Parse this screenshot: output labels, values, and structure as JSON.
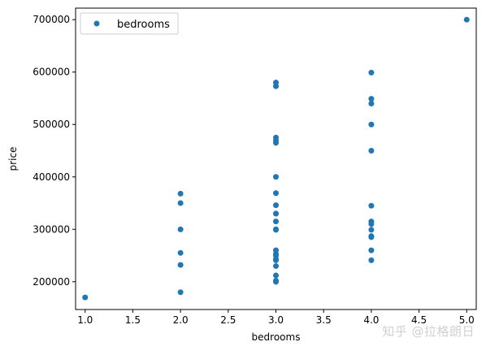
{
  "chart_data": {
    "type": "scatter",
    "xlabel": "bedrooms",
    "ylabel": "price",
    "xlim": [
      0.9,
      5.1
    ],
    "ylim": [
      147000,
      722000
    ],
    "xticks": [
      1.0,
      1.5,
      2.0,
      2.5,
      3.0,
      3.5,
      4.0,
      4.5,
      5.0
    ],
    "xtick_labels": [
      "1.0",
      "1.5",
      "2.0",
      "2.5",
      "3.0",
      "3.5",
      "4.0",
      "4.5",
      "5.0"
    ],
    "yticks": [
      200000,
      300000,
      400000,
      500000,
      600000,
      700000
    ],
    "ytick_labels": [
      "200000",
      "300000",
      "400000",
      "500000",
      "600000",
      "700000"
    ],
    "grid": false,
    "legend": {
      "position": "upper-left",
      "entries": [
        "bedrooms"
      ]
    },
    "series": [
      {
        "name": "bedrooms",
        "color": "#1f77b4",
        "points": [
          [
            1,
            170000
          ],
          [
            2,
            368000
          ],
          [
            2,
            350000
          ],
          [
            2,
            299900
          ],
          [
            2,
            255000
          ],
          [
            2,
            232000
          ],
          [
            2,
            180000
          ],
          [
            3,
            580000
          ],
          [
            3,
            573000
          ],
          [
            3,
            475000
          ],
          [
            3,
            469000
          ],
          [
            3,
            465000
          ],
          [
            3,
            400000
          ],
          [
            3,
            369000
          ],
          [
            3,
            346000
          ],
          [
            3,
            330000
          ],
          [
            3,
            329900
          ],
          [
            3,
            315000
          ],
          [
            3,
            300000
          ],
          [
            3,
            299000
          ],
          [
            3,
            260000
          ],
          [
            3,
            252900
          ],
          [
            3,
            249900
          ],
          [
            3,
            243000
          ],
          [
            3,
            241000
          ],
          [
            3,
            230000
          ],
          [
            3,
            212000
          ],
          [
            3,
            202000
          ],
          [
            3,
            199900
          ],
          [
            4,
            599000
          ],
          [
            4,
            549000
          ],
          [
            4,
            539900
          ],
          [
            4,
            500000
          ],
          [
            4,
            450000
          ],
          [
            4,
            345000
          ],
          [
            4,
            314900
          ],
          [
            4,
            310000
          ],
          [
            4,
            299000
          ],
          [
            4,
            287000
          ],
          [
            4,
            285000
          ],
          [
            4,
            259900
          ],
          [
            4,
            241000
          ],
          [
            5,
            700000
          ]
        ]
      }
    ]
  },
  "watermark": "知乎 @拉格朗日"
}
